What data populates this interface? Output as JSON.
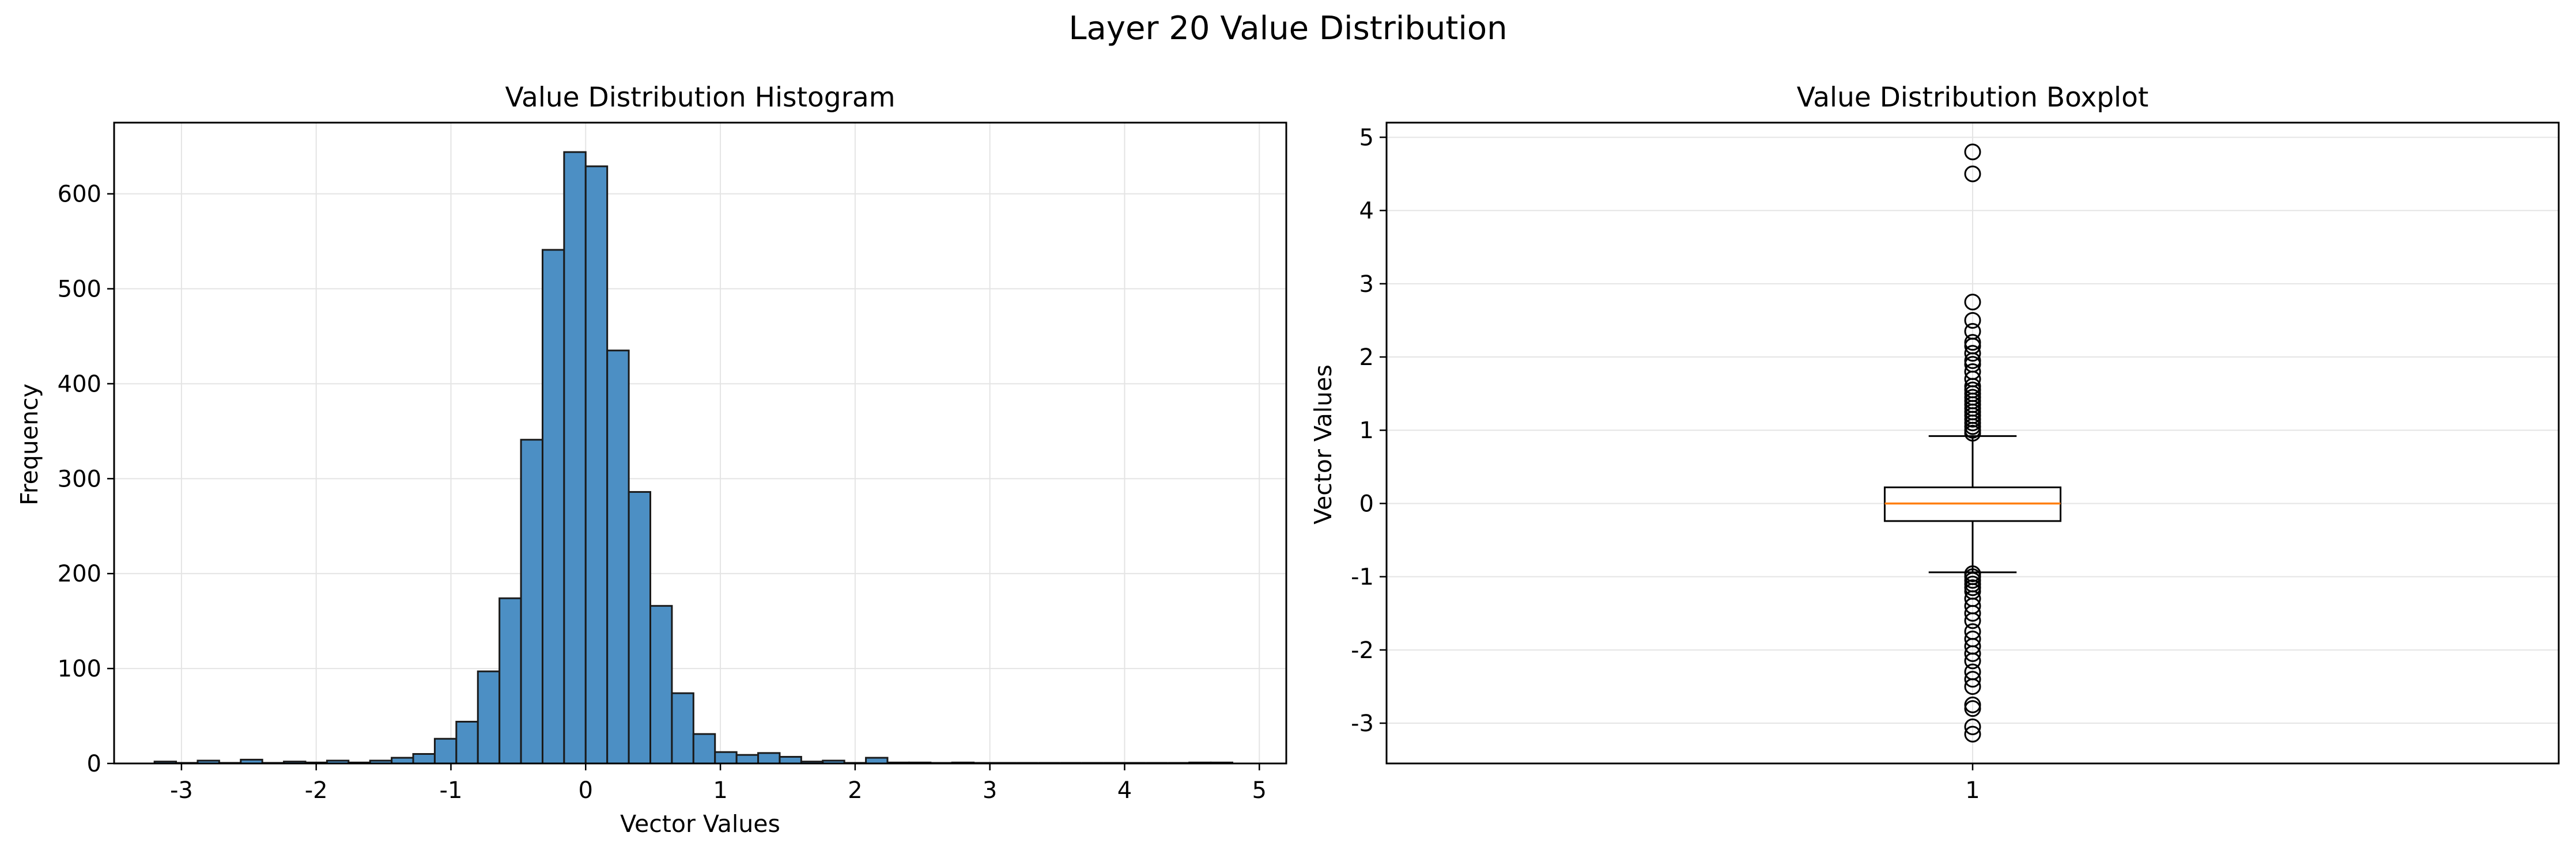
{
  "figure": {
    "suptitle": "Layer 20 Value Distribution"
  },
  "chart_data": [
    {
      "type": "bar",
      "subtype": "histogram",
      "title": "Value Distribution Histogram",
      "xlabel": "Vector Values",
      "ylabel": "Frequency",
      "xlim": [
        -3.5,
        5.2
      ],
      "ylim": [
        0,
        675
      ],
      "xticks": [
        -3,
        -2,
        -1,
        0,
        1,
        2,
        3,
        4,
        5
      ],
      "xtick_labels": [
        "-3",
        "-2",
        "-1",
        "0",
        "1",
        "2",
        "3",
        "4",
        "5"
      ],
      "yticks": [
        0,
        100,
        200,
        300,
        400,
        500,
        600
      ],
      "ytick_labels": [
        "0",
        "100",
        "200",
        "300",
        "400",
        "500",
        "600"
      ],
      "grid": true,
      "bar_color": "#4c8fc4",
      "bar_edge_color": "#1a1a1a",
      "bins": [
        {
          "x0": -3.2,
          "x1": -3.04,
          "count": 2
        },
        {
          "x0": -3.04,
          "x1": -2.88,
          "count": 0
        },
        {
          "x0": -2.88,
          "x1": -2.72,
          "count": 3
        },
        {
          "x0": -2.72,
          "x1": -2.56,
          "count": 0
        },
        {
          "x0": -2.56,
          "x1": -2.4,
          "count": 4
        },
        {
          "x0": -2.4,
          "x1": -2.24,
          "count": 0
        },
        {
          "x0": -2.24,
          "x1": -2.08,
          "count": 2
        },
        {
          "x0": -2.08,
          "x1": -1.92,
          "count": 1
        },
        {
          "x0": -1.92,
          "x1": -1.76,
          "count": 3
        },
        {
          "x0": -1.76,
          "x1": -1.6,
          "count": 1
        },
        {
          "x0": -1.6,
          "x1": -1.44,
          "count": 3
        },
        {
          "x0": -1.44,
          "x1": -1.28,
          "count": 6
        },
        {
          "x0": -1.28,
          "x1": -1.12,
          "count": 10
        },
        {
          "x0": -1.12,
          "x1": -0.96,
          "count": 26
        },
        {
          "x0": -0.96,
          "x1": -0.8,
          "count": 44
        },
        {
          "x0": -0.8,
          "x1": -0.64,
          "count": 97
        },
        {
          "x0": -0.64,
          "x1": -0.48,
          "count": 174
        },
        {
          "x0": -0.48,
          "x1": -0.32,
          "count": 341
        },
        {
          "x0": -0.32,
          "x1": -0.16,
          "count": 541
        },
        {
          "x0": -0.16,
          "x1": 0.0,
          "count": 644
        },
        {
          "x0": 0.0,
          "x1": 0.16,
          "count": 629
        },
        {
          "x0": 0.16,
          "x1": 0.32,
          "count": 435
        },
        {
          "x0": 0.32,
          "x1": 0.48,
          "count": 286
        },
        {
          "x0": 0.48,
          "x1": 0.64,
          "count": 166
        },
        {
          "x0": 0.64,
          "x1": 0.8,
          "count": 74
        },
        {
          "x0": 0.8,
          "x1": 0.96,
          "count": 31
        },
        {
          "x0": 0.96,
          "x1": 1.12,
          "count": 12
        },
        {
          "x0": 1.12,
          "x1": 1.28,
          "count": 9
        },
        {
          "x0": 1.28,
          "x1": 1.44,
          "count": 11
        },
        {
          "x0": 1.44,
          "x1": 1.6,
          "count": 7
        },
        {
          "x0": 1.6,
          "x1": 1.76,
          "count": 2
        },
        {
          "x0": 1.76,
          "x1": 1.92,
          "count": 3
        },
        {
          "x0": 1.92,
          "x1": 2.08,
          "count": 0
        },
        {
          "x0": 2.08,
          "x1": 2.24,
          "count": 6
        },
        {
          "x0": 2.24,
          "x1": 2.4,
          "count": 1
        },
        {
          "x0": 2.4,
          "x1": 2.56,
          "count": 1
        },
        {
          "x0": 2.56,
          "x1": 2.72,
          "count": 0
        },
        {
          "x0": 2.72,
          "x1": 2.88,
          "count": 1
        },
        {
          "x0": 2.88,
          "x1": 3.04,
          "count": 0
        },
        {
          "x0": 3.04,
          "x1": 3.2,
          "count": 0
        },
        {
          "x0": 3.2,
          "x1": 3.36,
          "count": 0
        },
        {
          "x0": 3.36,
          "x1": 3.52,
          "count": 0
        },
        {
          "x0": 3.52,
          "x1": 3.68,
          "count": 0
        },
        {
          "x0": 3.68,
          "x1": 3.84,
          "count": 0
        },
        {
          "x0": 3.84,
          "x1": 4.0,
          "count": 0
        },
        {
          "x0": 4.0,
          "x1": 4.16,
          "count": 0
        },
        {
          "x0": 4.16,
          "x1": 4.32,
          "count": 0
        },
        {
          "x0": 4.32,
          "x1": 4.48,
          "count": 0
        },
        {
          "x0": 4.48,
          "x1": 4.64,
          "count": 1
        },
        {
          "x0": 4.64,
          "x1": 4.8,
          "count": 1
        }
      ]
    },
    {
      "type": "boxplot",
      "title": "Value Distribution Boxplot",
      "xlabel": "",
      "ylabel": "Vector Values",
      "xlim": [
        0.5,
        1.5
      ],
      "ylim": [
        -3.55,
        5.2
      ],
      "xticks": [
        1
      ],
      "xtick_labels": [
        "1"
      ],
      "yticks": [
        -3,
        -2,
        -1,
        0,
        1,
        2,
        3,
        4,
        5
      ],
      "ytick_labels": [
        "-3",
        "-2",
        "-1",
        "0",
        "1",
        "2",
        "3",
        "4",
        "5"
      ],
      "grid": true,
      "median_color": "#ff7f0e",
      "box": {
        "position": 1,
        "q1": -0.24,
        "median": 0.0,
        "q3": 0.22,
        "whisker_low": -0.94,
        "whisker_high": 0.92,
        "outliers": [
          4.8,
          4.5,
          2.75,
          2.5,
          2.35,
          2.2,
          2.15,
          2.05,
          1.95,
          1.9,
          1.8,
          1.7,
          1.6,
          1.55,
          1.5,
          1.45,
          1.4,
          1.35,
          1.3,
          1.25,
          1.2,
          1.15,
          1.1,
          1.05,
          1.0,
          0.96,
          -0.96,
          -1.0,
          -1.05,
          -1.1,
          -1.15,
          -1.2,
          -1.3,
          -1.4,
          -1.5,
          -1.6,
          -1.75,
          -1.85,
          -1.95,
          -2.05,
          -2.15,
          -2.3,
          -2.4,
          -2.5,
          -2.75,
          -2.8,
          -3.05,
          -3.15
        ]
      }
    }
  ]
}
